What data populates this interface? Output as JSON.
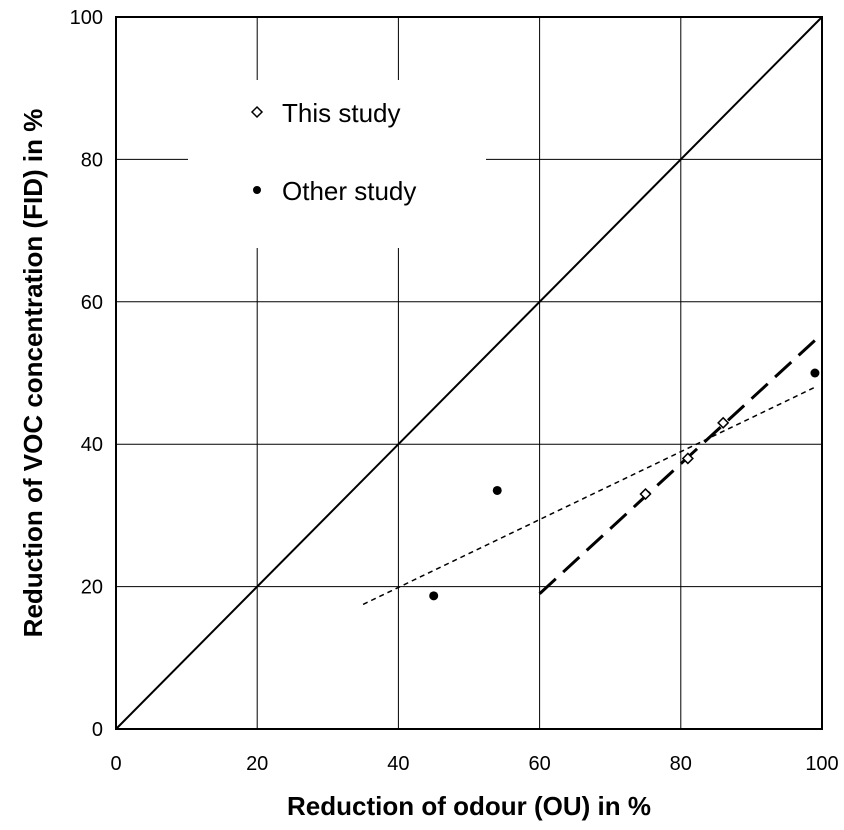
{
  "chart_data": {
    "type": "scatter",
    "title": "",
    "xlabel": "Reduction of odour (OU)  in %",
    "ylabel": "Reduction of VOC concentration (FID)  in %",
    "xlim": [
      0,
      100
    ],
    "ylim": [
      0,
      100
    ],
    "x_ticks": [
      "0",
      "20",
      "40",
      "60",
      "80",
      "100"
    ],
    "y_ticks": [
      "0",
      "20",
      "40",
      "60",
      "80",
      "100"
    ],
    "grid": true,
    "legend_position": "top-left",
    "series": [
      {
        "name": "This study",
        "marker": "open-diamond",
        "points": [
          [
            75,
            33
          ],
          [
            81,
            38
          ],
          [
            86,
            43
          ]
        ]
      },
      {
        "name": "Other study",
        "marker": "filled-circle",
        "points": [
          [
            45,
            18.7
          ],
          [
            54,
            33.5
          ],
          [
            99,
            50
          ]
        ]
      }
    ],
    "lines": [
      {
        "style": "solid",
        "from": [
          0,
          0
        ],
        "to": [
          100,
          100
        ]
      },
      {
        "style": "long-dash",
        "from": [
          60,
          19
        ],
        "to": [
          100,
          55.5
        ]
      },
      {
        "style": "short-dash",
        "from": [
          35,
          17.5
        ],
        "to": [
          99,
          48
        ]
      }
    ]
  }
}
